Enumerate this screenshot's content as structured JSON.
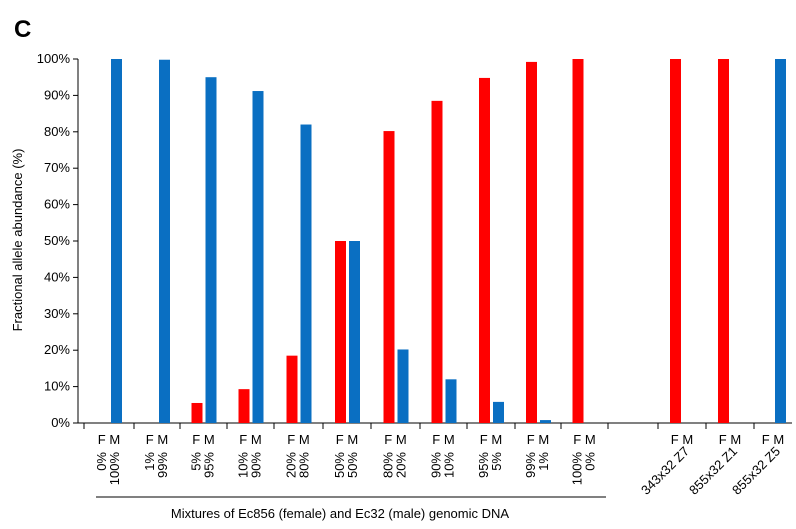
{
  "chart_data": {
    "type": "bar",
    "panel_label": "C",
    "ylabel": "Fractional allele abundance (%)",
    "ylim": [
      0,
      100
    ],
    "yticks": [
      "0%",
      "10%",
      "20%",
      "30%",
      "40%",
      "50%",
      "60%",
      "70%",
      "80%",
      "90%",
      "100%"
    ],
    "bar_pair_label": "F M",
    "groups": [
      {
        "f_pct": "0%",
        "m_pct": "100%",
        "F": 0,
        "M": 100
      },
      {
        "f_pct": "1%",
        "m_pct": "99%",
        "F": 0,
        "M": 99.8
      },
      {
        "f_pct": "5%",
        "m_pct": "95%",
        "F": 5.5,
        "M": 95
      },
      {
        "f_pct": "10%",
        "m_pct": "90%",
        "F": 9.3,
        "M": 91.2
      },
      {
        "f_pct": "20%",
        "m_pct": "80%",
        "F": 18.5,
        "M": 82
      },
      {
        "f_pct": "50%",
        "m_pct": "50%",
        "F": 50,
        "M": 50
      },
      {
        "f_pct": "80%",
        "m_pct": "20%",
        "F": 80.2,
        "M": 20.2
      },
      {
        "f_pct": "90%",
        "m_pct": "10%",
        "F": 88.5,
        "M": 12
      },
      {
        "f_pct": "95%",
        "m_pct": "5%",
        "F": 94.8,
        "M": 5.8
      },
      {
        "f_pct": "99%",
        "m_pct": "1%",
        "F": 99.2,
        "M": 0.8
      },
      {
        "f_pct": "100%",
        "m_pct": "0%",
        "F": 100,
        "M": 0
      }
    ],
    "samples": [
      {
        "name": "343x32 Z7",
        "F": 100,
        "M": 0
      },
      {
        "name": "855x32 Z1",
        "F": 100,
        "M": 0
      },
      {
        "name": "855x32 Z5",
        "F": 0,
        "M": 100
      }
    ],
    "series": [
      {
        "name": "F",
        "color": "#ff0000"
      },
      {
        "name": "M",
        "color": "#0a6fc2"
      }
    ],
    "group_caption": "Mixtures of Ec856 (female) and Ec32 (male) genomic DNA"
  }
}
